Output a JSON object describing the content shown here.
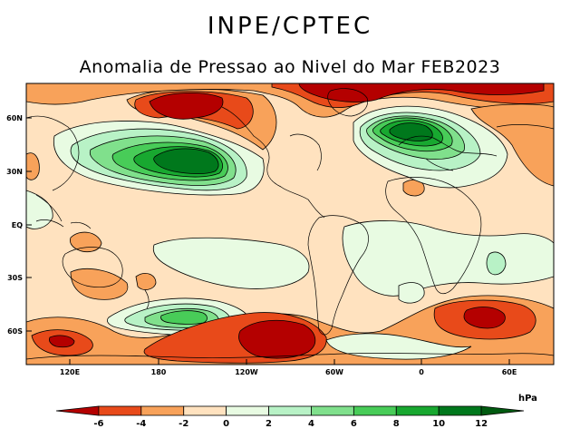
{
  "header": {
    "organization": "INPE/CPTEC",
    "title": "Anomalia de Pressao ao Nivel do Mar FEB2023"
  },
  "map": {
    "lat_labels": [
      "60N",
      "30N",
      "EQ",
      "30S",
      "60S"
    ],
    "lon_labels": [
      "120E",
      "180",
      "120W",
      "60W",
      "0",
      "60E"
    ],
    "colors": {
      "neg6": "#b40000",
      "neg4": "#e84a1a",
      "neg2": "#f8a25a",
      "neg0": "#ffe2bf",
      "pos0": "#e8fbe2",
      "pos2": "#b8f2c6",
      "pos4": "#80e08c",
      "pos6": "#48cc58",
      "pos8": "#18a830",
      "pos10": "#00781c",
      "land": "#000000"
    }
  },
  "colorbar": {
    "unit": "hPa",
    "labels": [
      "-6",
      "-4",
      "-2",
      "0",
      "2",
      "4",
      "6",
      "8",
      "10",
      "12"
    ],
    "colors": [
      "#b40000",
      "#e84a1a",
      "#f8a25a",
      "#ffe2bf",
      "#e8fbe2",
      "#b8f2c6",
      "#80e08c",
      "#48cc58",
      "#18a830",
      "#00781c",
      "#005a10"
    ]
  }
}
